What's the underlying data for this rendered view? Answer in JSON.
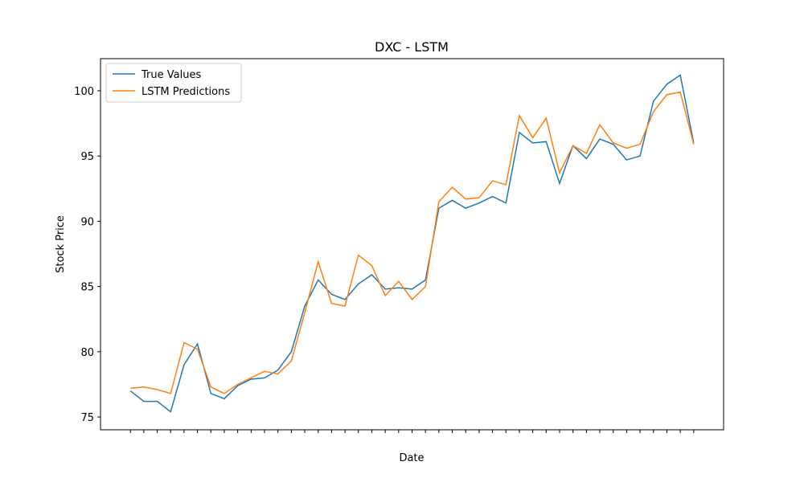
{
  "chart_data": {
    "type": "line",
    "title": "DXC - LSTM",
    "x_label": "Date",
    "y_label": "Stock Price",
    "categories": [
      null,
      null,
      null,
      null,
      null,
      null,
      null,
      null,
      null,
      null,
      null,
      null,
      null,
      null,
      null,
      null,
      null,
      null,
      null,
      null,
      null,
      null,
      null,
      null,
      null,
      null,
      null,
      null,
      null,
      null,
      null,
      null,
      null,
      null,
      null,
      null,
      null,
      null,
      null,
      null,
      null,
      null,
      null
    ],
    "series": [
      {
        "name": "True Values",
        "color": "#1f77b4",
        "values": [
          77.0,
          76.2,
          76.2,
          75.4,
          79.0,
          80.6,
          76.8,
          76.4,
          77.4,
          77.9,
          78.0,
          78.6,
          80.0,
          83.5,
          85.5,
          84.4,
          84.0,
          85.2,
          85.9,
          84.8,
          84.9,
          84.8,
          85.5,
          91.0,
          91.6,
          91.0,
          91.4,
          91.9,
          91.4,
          96.8,
          96.0,
          96.1,
          92.9,
          95.8,
          94.8,
          96.3,
          95.9,
          94.7,
          95.0,
          99.2,
          100.5,
          101.2,
          96.0
        ]
      },
      {
        "name": "LSTM Predictions",
        "color": "#ff7f0e",
        "values": [
          77.2,
          77.3,
          77.1,
          76.8,
          80.7,
          80.2,
          77.3,
          76.8,
          77.5,
          78.0,
          78.5,
          78.3,
          79.3,
          83.0,
          86.9,
          83.7,
          83.5,
          87.4,
          86.6,
          84.3,
          85.4,
          84.0,
          85.0,
          91.5,
          92.6,
          91.7,
          91.8,
          93.1,
          92.8,
          98.1,
          96.4,
          97.9,
          93.7,
          95.8,
          95.2,
          97.4,
          96.0,
          95.6,
          95.9,
          98.4,
          99.7,
          99.9,
          95.9
        ]
      }
    ],
    "ylim": [
      74.02,
      102.46
    ],
    "yticks": [
      75,
      80,
      85,
      90,
      95,
      100
    ],
    "legend": "upper left",
    "grid": false
  }
}
